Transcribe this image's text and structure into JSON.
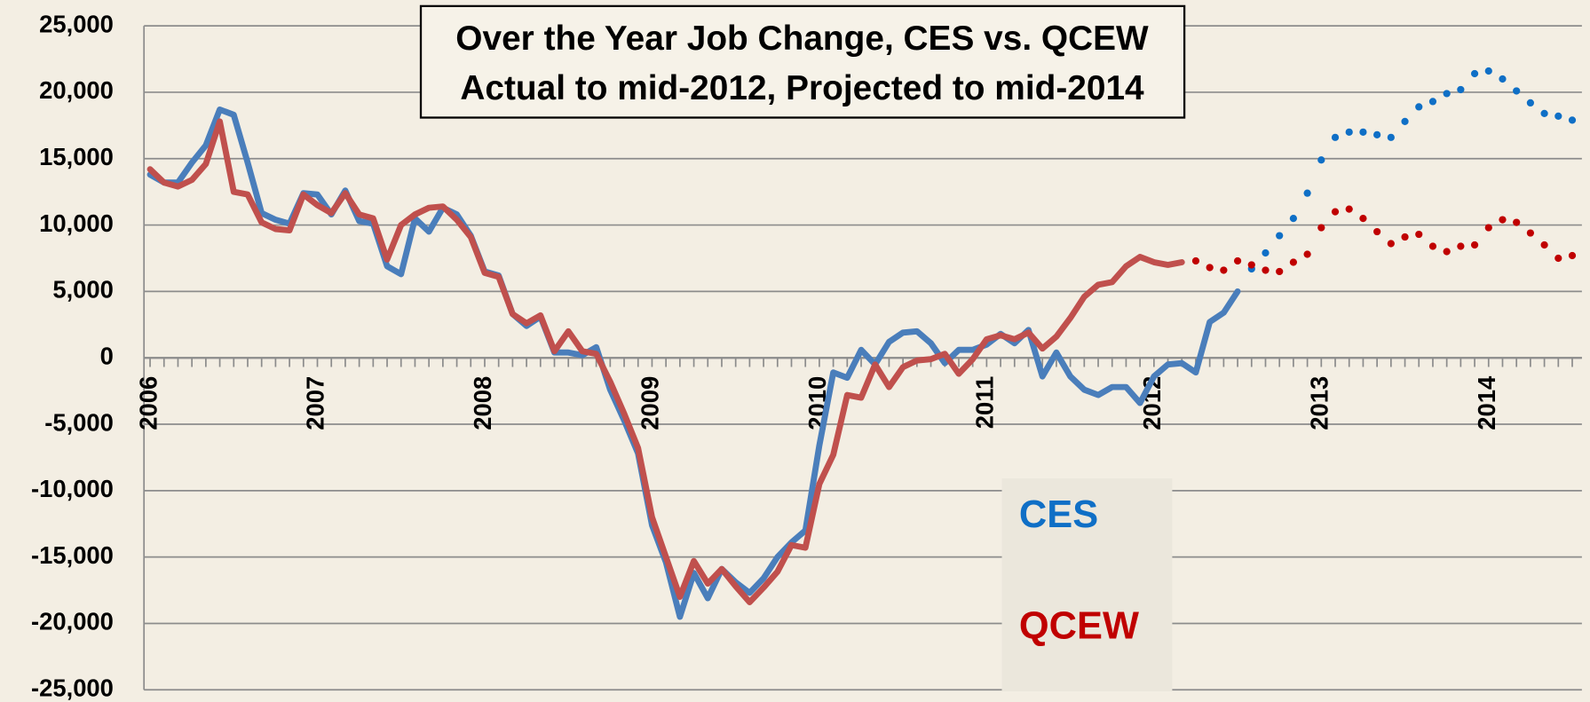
{
  "chart_data": {
    "type": "line",
    "title": "Over the Year Job Change, CES vs. QCEW",
    "subtitle": "Actual to mid-2012, Projected to mid-2014",
    "categories": [
      "2006",
      null,
      null,
      null,
      null,
      null,
      null,
      null,
      null,
      null,
      null,
      null,
      "2007",
      null,
      null,
      null,
      null,
      null,
      null,
      null,
      null,
      null,
      null,
      null,
      "2008",
      null,
      null,
      null,
      null,
      null,
      null,
      null,
      null,
      null,
      null,
      null,
      "2009",
      null,
      null,
      null,
      null,
      null,
      null,
      null,
      null,
      null,
      null,
      null,
      "2010",
      null,
      null,
      null,
      null,
      null,
      null,
      null,
      null,
      null,
      null,
      null,
      "2011",
      null,
      null,
      null,
      null,
      null,
      null,
      null,
      null,
      null,
      null,
      null,
      "2012",
      null,
      null,
      null,
      null,
      null,
      null,
      null,
      null,
      null,
      null,
      null,
      "2013",
      null,
      null,
      null,
      null,
      null,
      null,
      null,
      null,
      null,
      null,
      null,
      "2014",
      null,
      null,
      null,
      null,
      null,
      null
    ],
    "series": [
      {
        "name": "CES",
        "color": "#4a7ebb",
        "projected_color": "#0f6fc6",
        "values": [
          13800,
          13200,
          13200,
          14700,
          16000,
          18700,
          18300,
          14700,
          10900,
          10400,
          10100,
          12400,
          12300,
          10800,
          12600,
          10300,
          10100,
          6900,
          6300,
          10500,
          9500,
          11300,
          10800,
          9200,
          6500,
          6200,
          3300,
          2400,
          3100,
          400,
          400,
          200,
          800,
          -2400,
          -4700,
          -7200,
          -12600,
          -15400,
          -19500,
          -16200,
          -18100,
          -15900,
          -16900,
          -17700,
          -16600,
          -15000,
          -13900,
          -13000,
          -6600,
          -1100,
          -1500,
          600,
          -500,
          1200,
          1900,
          2000,
          1100,
          -400,
          600,
          600,
          1000,
          1800,
          1100,
          2100,
          -1400,
          400,
          -1400,
          -2400,
          -2800,
          -2200,
          -2200,
          -3400,
          -1400,
          -500,
          -400,
          -1100,
          2700,
          3400,
          5000,
          null,
          null,
          null,
          null,
          null,
          null,
          null,
          null,
          null,
          null,
          null,
          null,
          null,
          null,
          null,
          null,
          null,
          null,
          null,
          null,
          null,
          null,
          null,
          null
        ],
        "projected_values": [
          null,
          null,
          null,
          null,
          null,
          null,
          null,
          null,
          null,
          null,
          null,
          null,
          null,
          null,
          null,
          null,
          null,
          null,
          null,
          null,
          null,
          null,
          null,
          null,
          null,
          null,
          null,
          null,
          null,
          null,
          null,
          null,
          null,
          null,
          null,
          null,
          null,
          null,
          null,
          null,
          null,
          null,
          null,
          null,
          null,
          null,
          null,
          null,
          null,
          null,
          null,
          null,
          null,
          null,
          null,
          null,
          null,
          null,
          null,
          null,
          null,
          null,
          null,
          null,
          null,
          null,
          null,
          null,
          null,
          null,
          null,
          null,
          null,
          null,
          null,
          null,
          null,
          null,
          null,
          6700,
          7900,
          9200,
          10500,
          12400,
          14900,
          16600,
          17000,
          17000,
          16800,
          16600,
          17800,
          18900,
          19300,
          19900,
          20200,
          21400,
          21600,
          21000,
          20100,
          19200,
          18400,
          18200,
          17900
        ]
      },
      {
        "name": "QCEW",
        "color": "#c0504d",
        "projected_color": "#c00000",
        "values": [
          14200,
          13200,
          12900,
          13400,
          14600,
          17800,
          12500,
          12300,
          10200,
          9700,
          9600,
          12300,
          11500,
          10900,
          12400,
          10800,
          10500,
          7400,
          10000,
          10800,
          11300,
          11400,
          10400,
          9100,
          6400,
          6100,
          3300,
          2600,
          3200,
          500,
          2000,
          500,
          300,
          -1800,
          -4200,
          -6800,
          -12000,
          -15000,
          -18000,
          -15300,
          -17000,
          -15900,
          -17200,
          -18400,
          -17300,
          -16100,
          -14100,
          -14300,
          -9500,
          -7300,
          -2800,
          -3000,
          -500,
          -2200,
          -700,
          -200,
          -100,
          300,
          -1200,
          -100,
          1400,
          1700,
          1400,
          1900,
          700,
          1600,
          3000,
          4600,
          5500,
          5700,
          6900,
          7600,
          7200,
          7000,
          7200,
          null,
          null,
          null,
          null,
          null,
          null,
          null,
          null,
          null,
          null,
          null,
          null,
          null,
          null,
          null,
          null,
          null,
          null,
          null,
          null,
          null,
          null,
          null,
          null,
          null,
          null,
          null,
          null
        ],
        "projected_values": [
          null,
          null,
          null,
          null,
          null,
          null,
          null,
          null,
          null,
          null,
          null,
          null,
          null,
          null,
          null,
          null,
          null,
          null,
          null,
          null,
          null,
          null,
          null,
          null,
          null,
          null,
          null,
          null,
          null,
          null,
          null,
          null,
          null,
          null,
          null,
          null,
          null,
          null,
          null,
          null,
          null,
          null,
          null,
          null,
          null,
          null,
          null,
          null,
          null,
          null,
          null,
          null,
          null,
          null,
          null,
          null,
          null,
          null,
          null,
          null,
          null,
          null,
          null,
          null,
          null,
          null,
          null,
          null,
          null,
          null,
          null,
          null,
          null,
          null,
          null,
          7300,
          6800,
          6600,
          7300,
          7000,
          6600,
          6500,
          7200,
          7800,
          9800,
          11000,
          11200,
          10500,
          9500,
          8600,
          9100,
          9300,
          8400,
          8000,
          8400,
          8500,
          9800,
          10400,
          10200,
          9400,
          8500,
          7500,
          7700
        ]
      }
    ],
    "ylim": [
      -25000,
      25000
    ],
    "yticks": [
      {
        "value": -25000,
        "label": "-25,000"
      },
      {
        "value": -20000,
        "label": "-20,000"
      },
      {
        "value": -15000,
        "label": "-15,000"
      },
      {
        "value": -10000,
        "label": "-10,000"
      },
      {
        "value": -5000,
        "label": "-5,000"
      },
      0,
      {
        "value": 5000,
        "label": "5,000"
      },
      {
        "value": 10000,
        "label": "10,000"
      },
      {
        "value": 15000,
        "label": "15,000"
      },
      {
        "value": 20000,
        "label": "20,000"
      },
      {
        "value": 25000,
        "label": "25,000"
      }
    ],
    "grid": true
  }
}
